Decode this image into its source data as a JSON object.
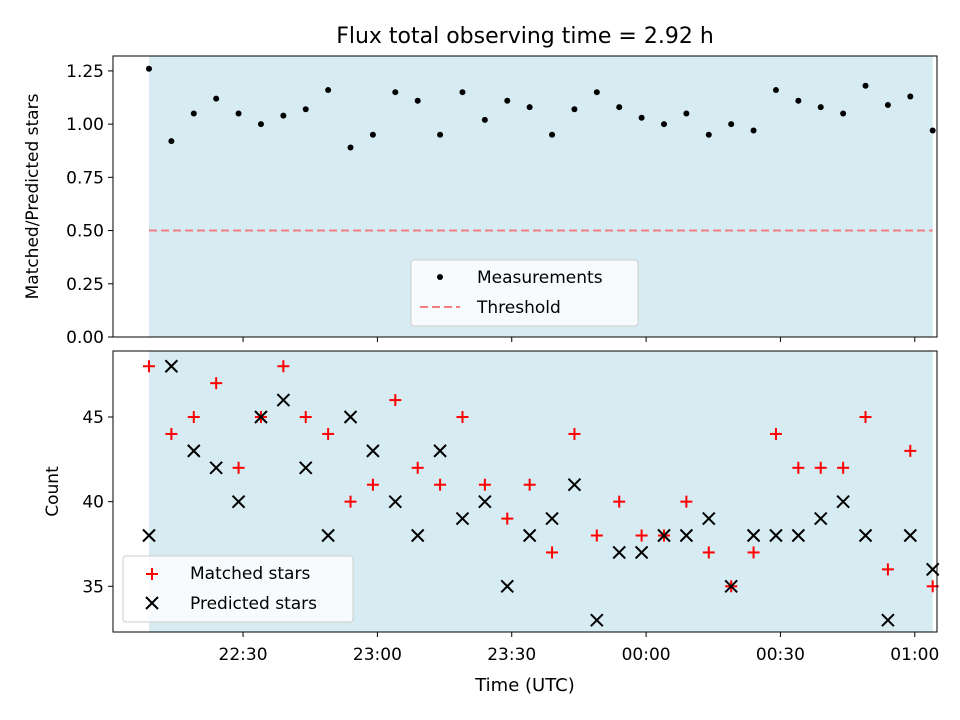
{
  "title": "Flux total observing time = 2.92 h",
  "xlabel": "Time (UTC)",
  "colors": {
    "band": "#add8e6",
    "measurement": "#000000",
    "threshold": "#f08080",
    "matched": "#ff0000",
    "predicted": "#000000"
  },
  "chart_data": [
    {
      "type": "scatter",
      "ylabel": "Matched/Predicted stars",
      "ylim": [
        0,
        1.32
      ],
      "yticks": [
        0,
        0.25,
        0.5,
        0.75,
        1.0,
        1.25
      ],
      "ytick_labels": [
        "0.00",
        "0.25",
        "0.50",
        "0.75",
        "1.00",
        "1.25"
      ],
      "x_range": [
        "22:09",
        "01:13"
      ],
      "observing_band": [
        "22:09",
        "01:04"
      ],
      "legend_position": "lower center",
      "legend": [
        "Measurements",
        "Threshold"
      ],
      "threshold": 0.5,
      "series": [
        {
          "name": "Measurements",
          "x": [
            "22:09",
            "22:14",
            "22:19",
            "22:24",
            "22:29",
            "22:34",
            "22:39",
            "22:44",
            "22:49",
            "22:54",
            "22:59",
            "23:04",
            "23:09",
            "23:14",
            "23:19",
            "23:24",
            "23:29",
            "23:34",
            "23:39",
            "23:44",
            "23:49",
            "23:54",
            "23:59",
            "00:04",
            "00:09",
            "00:14",
            "00:19",
            "00:24",
            "00:29",
            "00:34",
            "00:39",
            "00:44",
            "00:49",
            "00:54",
            "00:59",
            "01:04"
          ],
          "y": [
            1.26,
            0.92,
            1.05,
            1.12,
            1.05,
            1.0,
            1.04,
            1.07,
            1.16,
            0.89,
            0.95,
            1.15,
            1.11,
            0.95,
            1.15,
            1.02,
            1.11,
            1.08,
            0.95,
            1.07,
            1.15,
            1.08,
            1.03,
            1.0,
            1.05,
            0.95,
            1.0,
            0.97,
            1.16,
            1.11,
            1.08,
            1.05,
            1.18,
            1.09,
            1.13,
            0.97
          ]
        }
      ]
    },
    {
      "type": "scatter",
      "ylabel": "Count",
      "ylim": [
        32.3,
        48.9
      ],
      "yticks": [
        35,
        40,
        45
      ],
      "ytick_labels": [
        "35",
        "40",
        "45"
      ],
      "x_range": [
        "22:09",
        "01:13"
      ],
      "xticks": [
        "22:30",
        "23:00",
        "23:30",
        "00:00",
        "00:30",
        "01:00"
      ],
      "observing_band": [
        "22:09",
        "01:04"
      ],
      "legend_position": "lower left",
      "legend": [
        "Matched stars",
        "Predicted stars"
      ],
      "x": [
        "22:09",
        "22:14",
        "22:19",
        "22:24",
        "22:29",
        "22:34",
        "22:39",
        "22:44",
        "22:49",
        "22:54",
        "22:59",
        "23:04",
        "23:09",
        "23:14",
        "23:19",
        "23:24",
        "23:29",
        "23:34",
        "23:39",
        "23:44",
        "23:49",
        "23:54",
        "23:59",
        "00:04",
        "00:09",
        "00:14",
        "00:19",
        "00:24",
        "00:29",
        "00:34",
        "00:39",
        "00:44",
        "00:49",
        "00:54",
        "00:59",
        "01:04"
      ],
      "series": [
        {
          "name": "Matched stars",
          "values": [
            48,
            44,
            45,
            47,
            42,
            45,
            48,
            45,
            44,
            40,
            41,
            46,
            42,
            41,
            45,
            41,
            39,
            41,
            37,
            44,
            38,
            40,
            38,
            38,
            40,
            37,
            35,
            37,
            44,
            42,
            42,
            42,
            45,
            36,
            43,
            35
          ]
        },
        {
          "name": "Predicted stars",
          "values": [
            38,
            48,
            43,
            42,
            40,
            45,
            46,
            42,
            38,
            45,
            43,
            40,
            38,
            43,
            39,
            40,
            35,
            38,
            39,
            41,
            33,
            37,
            37,
            38,
            38,
            39,
            35,
            38,
            38,
            38,
            39,
            40,
            38,
            33,
            38,
            36
          ]
        }
      ]
    }
  ]
}
